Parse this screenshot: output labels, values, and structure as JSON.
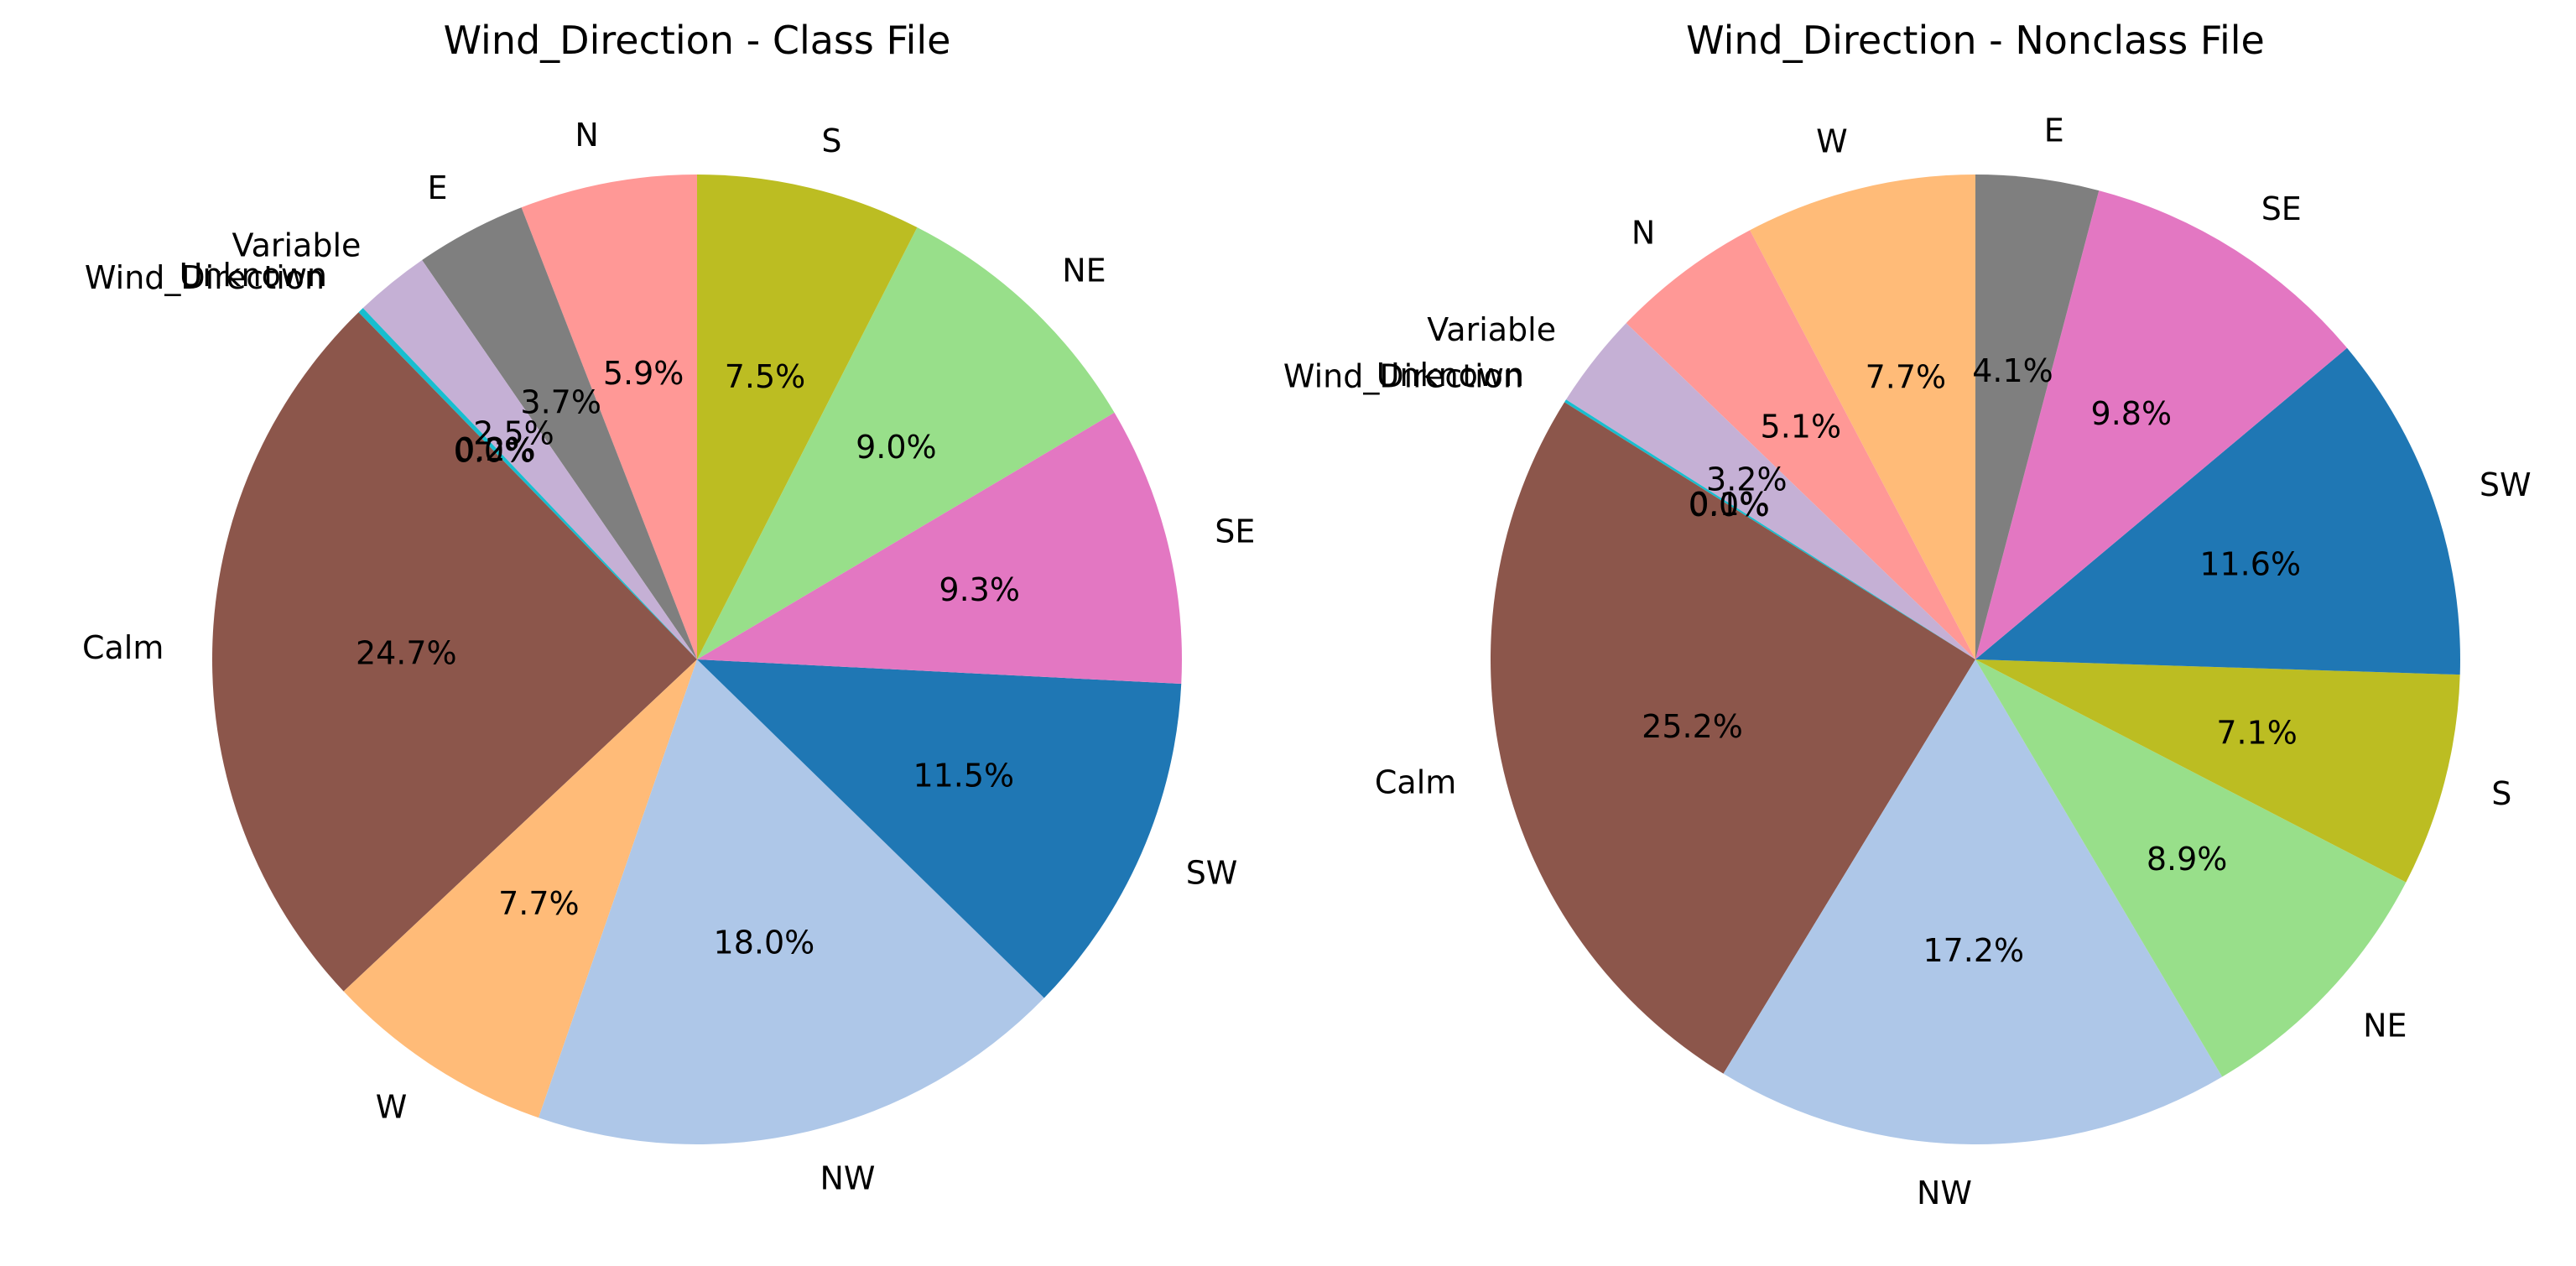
{
  "chart_data": [
    {
      "type": "pie",
      "title": "Wind_Direction - Class File",
      "start_angle": 90,
      "direction": "counterclockwise",
      "slices": [
        {
          "label": "N",
          "value": 5.9,
          "pct_label": "5.9%",
          "color": "#ff9896"
        },
        {
          "label": "E",
          "value": 3.7,
          "pct_label": "3.7%",
          "color": "#7f7f7f"
        },
        {
          "label": "Variable",
          "value": 2.5,
          "pct_label": "2.5%",
          "color": "#c5b0d5"
        },
        {
          "label": "Unknown",
          "value": 0.2,
          "pct_label": "0.2%",
          "color": "#17becf"
        },
        {
          "label": "Wind_Direction",
          "value": 0.0,
          "pct_label": "0.0%",
          "color": "#dbdb8d"
        },
        {
          "label": "Calm",
          "value": 24.7,
          "pct_label": "24.7%",
          "color": "#8c564b"
        },
        {
          "label": "W",
          "value": 7.7,
          "pct_label": "7.7%",
          "color": "#ffbb78"
        },
        {
          "label": "NW",
          "value": 18.0,
          "pct_label": "18.0%",
          "color": "#aec7e8"
        },
        {
          "label": "SW",
          "value": 11.5,
          "pct_label": "11.5%",
          "color": "#1f77b4"
        },
        {
          "label": "SE",
          "value": 9.3,
          "pct_label": "9.3%",
          "color": "#e377c2"
        },
        {
          "label": "NE",
          "value": 9.0,
          "pct_label": "9.0%",
          "color": "#98df8a"
        },
        {
          "label": "S",
          "value": 7.5,
          "pct_label": "7.5%",
          "color": "#bcbd22"
        }
      ]
    },
    {
      "type": "pie",
      "title": "Wind_Direction - Nonclass File",
      "start_angle": 90,
      "direction": "counterclockwise",
      "slices": [
        {
          "label": "W",
          "value": 7.7,
          "pct_label": "7.7%",
          "color": "#ffbb78"
        },
        {
          "label": "N",
          "value": 5.1,
          "pct_label": "5.1%",
          "color": "#ff9896"
        },
        {
          "label": "Variable",
          "value": 3.2,
          "pct_label": "3.2%",
          "color": "#c5b0d5"
        },
        {
          "label": "Unknown",
          "value": 0.1,
          "pct_label": "0.1%",
          "color": "#17becf"
        },
        {
          "label": "Wind_Direction",
          "value": 0.0,
          "pct_label": "0.0%",
          "color": "#dbdb8d"
        },
        {
          "label": "Calm",
          "value": 25.2,
          "pct_label": "25.2%",
          "color": "#8c564b"
        },
        {
          "label": "NW",
          "value": 17.2,
          "pct_label": "17.2%",
          "color": "#aec7e8"
        },
        {
          "label": "NE",
          "value": 8.9,
          "pct_label": "8.9%",
          "color": "#98df8a"
        },
        {
          "label": "S",
          "value": 7.1,
          "pct_label": "7.1%",
          "color": "#bcbd22"
        },
        {
          "label": "SW",
          "value": 11.6,
          "pct_label": "11.6%",
          "color": "#1f77b4"
        },
        {
          "label": "SE",
          "value": 9.8,
          "pct_label": "9.8%",
          "color": "#e377c2"
        },
        {
          "label": "E",
          "value": 4.1,
          "pct_label": "4.1%",
          "color": "#7f7f7f"
        }
      ]
    }
  ]
}
